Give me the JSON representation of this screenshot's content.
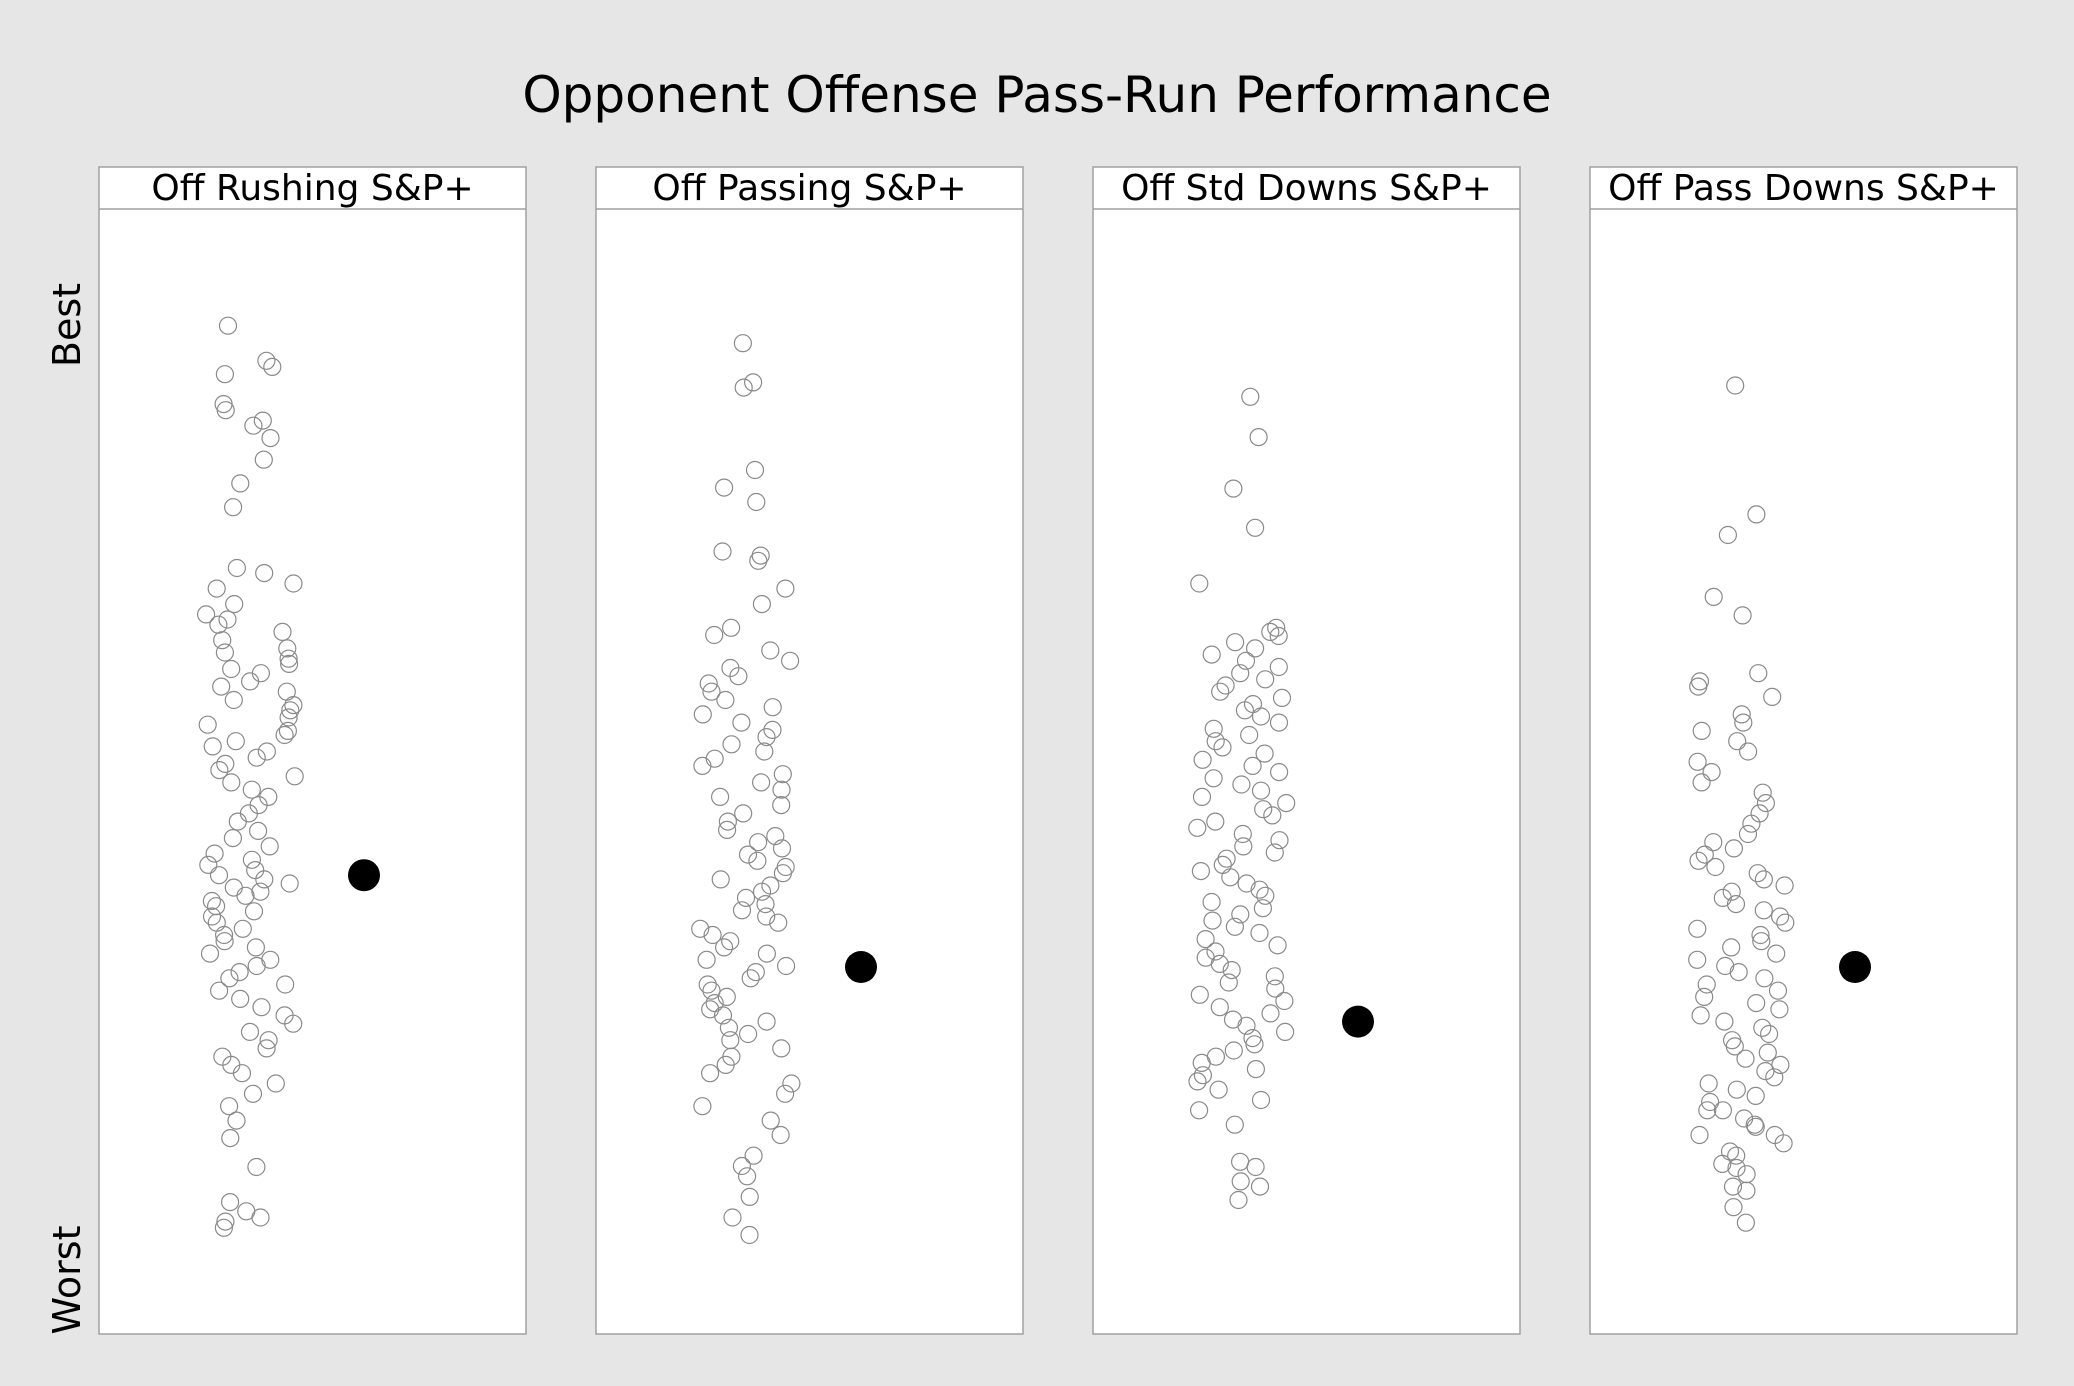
{
  "chart_data": {
    "type": "scatter",
    "title": "Opponent Offense Pass-Run Performance",
    "ylabel_top": "Best",
    "ylabel_bottom": "Worst",
    "grid": false,
    "colors": {
      "background": "#e6e6e6",
      "panel": "#ffffff",
      "frame": "#a0a0a0",
      "point_stroke": "#8a8a8a",
      "highlight": "#000000"
    },
    "panels": [
      {
        "label": "Off Rushing S&P+",
        "highlight": 0.588,
        "points": [
          0.055,
          0.089,
          0.095,
          0.102,
          0.131,
          0.137,
          0.147,
          0.152,
          0.164,
          0.185,
          0.208,
          0.231,
          0.29,
          0.295,
          0.305,
          0.31,
          0.325,
          0.335,
          0.34,
          0.345,
          0.352,
          0.36,
          0.368,
          0.372,
          0.378,
          0.383,
          0.388,
          0.392,
          0.4,
          0.405,
          0.41,
          0.418,
          0.423,
          0.428,
          0.435,
          0.442,
          0.448,
          0.452,
          0.458,
          0.463,
          0.468,
          0.474,
          0.48,
          0.486,
          0.492,
          0.498,
          0.505,
          0.512,
          0.52,
          0.528,
          0.536,
          0.545,
          0.552,
          0.56,
          0.567,
          0.573,
          0.578,
          0.583,
          0.588,
          0.592,
          0.596,
          0.6,
          0.604,
          0.608,
          0.613,
          0.618,
          0.623,
          0.628,
          0.634,
          0.64,
          0.646,
          0.652,
          0.658,
          0.664,
          0.67,
          0.676,
          0.682,
          0.688,
          0.694,
          0.7,
          0.708,
          0.716,
          0.724,
          0.732,
          0.74,
          0.748,
          0.756,
          0.764,
          0.772,
          0.78,
          0.79,
          0.8,
          0.812,
          0.826,
          0.843,
          0.871,
          0.905,
          0.914,
          0.92,
          0.924,
          0.93
        ]
      },
      {
        "label": "Off Passing S&P+",
        "highlight": 0.677,
        "points": [
          0.072,
          0.11,
          0.115,
          0.195,
          0.212,
          0.226,
          0.274,
          0.278,
          0.283,
          0.31,
          0.325,
          0.348,
          0.355,
          0.37,
          0.38,
          0.387,
          0.395,
          0.402,
          0.41,
          0.418,
          0.425,
          0.432,
          0.44,
          0.447,
          0.454,
          0.461,
          0.468,
          0.475,
          0.482,
          0.49,
          0.498,
          0.505,
          0.512,
          0.52,
          0.528,
          0.536,
          0.544,
          0.55,
          0.556,
          0.562,
          0.568,
          0.574,
          0.58,
          0.586,
          0.592,
          0.598,
          0.604,
          0.61,
          0.616,
          0.622,
          0.628,
          0.634,
          0.64,
          0.646,
          0.652,
          0.658,
          0.664,
          0.67,
          0.676,
          0.682,
          0.688,
          0.694,
          0.7,
          0.706,
          0.712,
          0.718,
          0.724,
          0.73,
          0.736,
          0.742,
          0.748,
          0.756,
          0.764,
          0.772,
          0.78,
          0.79,
          0.8,
          0.812,
          0.826,
          0.84,
          0.86,
          0.87,
          0.88,
          0.9,
          0.92,
          0.937
        ]
      },
      {
        "label": "Off Std Downs S&P+",
        "highlight": 0.73,
        "points": [
          0.124,
          0.163,
          0.213,
          0.251,
          0.305,
          0.348,
          0.352,
          0.356,
          0.362,
          0.368,
          0.374,
          0.38,
          0.386,
          0.392,
          0.398,
          0.404,
          0.41,
          0.416,
          0.422,
          0.428,
          0.434,
          0.44,
          0.446,
          0.452,
          0.458,
          0.464,
          0.47,
          0.476,
          0.482,
          0.488,
          0.494,
          0.5,
          0.506,
          0.512,
          0.518,
          0.524,
          0.53,
          0.536,
          0.542,
          0.548,
          0.554,
          0.56,
          0.566,
          0.572,
          0.578,
          0.584,
          0.59,
          0.596,
          0.602,
          0.608,
          0.614,
          0.62,
          0.626,
          0.632,
          0.638,
          0.644,
          0.65,
          0.656,
          0.662,
          0.668,
          0.674,
          0.68,
          0.686,
          0.692,
          0.698,
          0.704,
          0.71,
          0.716,
          0.722,
          0.728,
          0.734,
          0.74,
          0.746,
          0.752,
          0.758,
          0.764,
          0.77,
          0.776,
          0.782,
          0.788,
          0.796,
          0.806,
          0.816,
          0.83,
          0.866,
          0.871,
          0.885,
          0.89,
          0.903
        ]
      },
      {
        "label": "Off Pass Downs S&P+",
        "highlight": 0.677,
        "points": [
          0.113,
          0.238,
          0.258,
          0.318,
          0.336,
          0.392,
          0.4,
          0.405,
          0.415,
          0.432,
          0.44,
          0.448,
          0.458,
          0.468,
          0.478,
          0.488,
          0.498,
          0.508,
          0.518,
          0.528,
          0.538,
          0.548,
          0.556,
          0.562,
          0.568,
          0.574,
          0.58,
          0.586,
          0.592,
          0.598,
          0.604,
          0.61,
          0.616,
          0.622,
          0.628,
          0.634,
          0.64,
          0.646,
          0.652,
          0.658,
          0.664,
          0.67,
          0.676,
          0.682,
          0.688,
          0.694,
          0.7,
          0.706,
          0.712,
          0.718,
          0.724,
          0.73,
          0.736,
          0.742,
          0.748,
          0.754,
          0.76,
          0.766,
          0.772,
          0.778,
          0.784,
          0.79,
          0.796,
          0.802,
          0.808,
          0.816,
          0.824,
          0.832,
          0.84,
          0.848,
          0.856,
          0.816,
          0.83,
          0.84,
          0.868,
          0.872,
          0.878,
          0.894,
          0.91,
          0.925,
          0.89,
          0.86
        ]
      }
    ]
  }
}
